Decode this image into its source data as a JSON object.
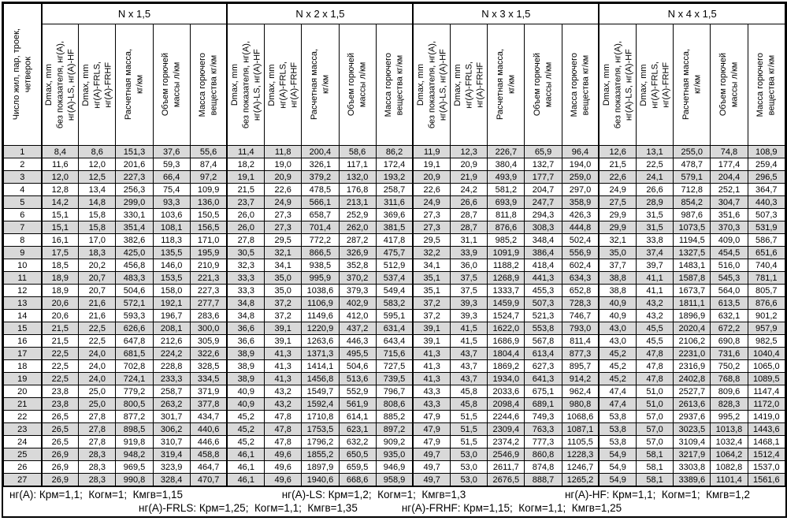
{
  "table": {
    "row_header_label": "Число жил, пар, троек,\nчетверок",
    "groups": [
      {
        "label": "N x 1,5"
      },
      {
        "label": "N x 2 x 1,5"
      },
      {
        "label": "N x 3 x 1,5"
      },
      {
        "label": "N x 4 x 1,5"
      }
    ],
    "subcolumns": [
      "Dmax, mm\nбез показателя, нг(А),\nнг(А)-LS, нг(А)-HF",
      "Dmax, mm\nнг(А)-FRLS,\nнг(А)-FRHF",
      "Расчетная масса,\nкг/км",
      "Объем горючей\nмассы л/км",
      "Масса горючего\nвещества кг/км"
    ],
    "rows": [
      {
        "n": "1",
        "cells": [
          "8,4",
          "8,6",
          "151,3",
          "37,6",
          "55,6",
          "11,4",
          "11,8",
          "200,4",
          "58,6",
          "86,2",
          "11,9",
          "12,3",
          "226,7",
          "65,9",
          "96,4",
          "12,6",
          "13,1",
          "255,0",
          "74,8",
          "108,9"
        ]
      },
      {
        "n": "2",
        "cells": [
          "11,6",
          "12,0",
          "201,6",
          "59,3",
          "87,4",
          "18,2",
          "19,0",
          "326,1",
          "117,1",
          "172,4",
          "19,1",
          "20,9",
          "380,4",
          "132,7",
          "194,0",
          "21,5",
          "22,5",
          "478,7",
          "177,4",
          "259,4"
        ]
      },
      {
        "n": "3",
        "cells": [
          "12,0",
          "12,5",
          "227,3",
          "66,4",
          "97,2",
          "19,1",
          "20,9",
          "379,2",
          "132,0",
          "193,2",
          "20,9",
          "21,9",
          "493,9",
          "177,7",
          "259,0",
          "22,6",
          "24,1",
          "579,1",
          "204,4",
          "296,5"
        ]
      },
      {
        "n": "4",
        "cells": [
          "12,8",
          "13,4",
          "256,3",
          "75,4",
          "109,9",
          "21,5",
          "22,6",
          "478,5",
          "176,8",
          "258,7",
          "22,6",
          "24,2",
          "581,2",
          "204,7",
          "297,0",
          "24,9",
          "26,6",
          "712,8",
          "252,1",
          "364,7"
        ]
      },
      {
        "n": "5",
        "cells": [
          "14,2",
          "14,8",
          "299,0",
          "93,3",
          "136,0",
          "23,7",
          "24,9",
          "566,1",
          "213,1",
          "311,6",
          "24,9",
          "26,6",
          "693,9",
          "247,7",
          "358,9",
          "27,5",
          "28,9",
          "854,2",
          "304,7",
          "440,3"
        ]
      },
      {
        "n": "6",
        "cells": [
          "15,1",
          "15,8",
          "330,1",
          "103,6",
          "150,5",
          "26,0",
          "27,3",
          "658,7",
          "252,9",
          "369,6",
          "27,3",
          "28,7",
          "811,8",
          "294,3",
          "426,3",
          "29,9",
          "31,5",
          "987,6",
          "351,6",
          "507,3"
        ]
      },
      {
        "n": "7",
        "cells": [
          "15,1",
          "15,8",
          "351,4",
          "108,1",
          "156,5",
          "26,0",
          "27,3",
          "701,4",
          "262,0",
          "381,5",
          "27,3",
          "28,7",
          "876,6",
          "308,3",
          "444,8",
          "29,9",
          "31,5",
          "1073,5",
          "370,3",
          "531,9"
        ]
      },
      {
        "n": "8",
        "cells": [
          "16,1",
          "17,0",
          "382,6",
          "118,3",
          "171,0",
          "27,8",
          "29,5",
          "772,2",
          "287,2",
          "417,8",
          "29,5",
          "31,1",
          "985,2",
          "348,4",
          "502,4",
          "32,1",
          "33,8",
          "1194,5",
          "409,0",
          "586,7"
        ]
      },
      {
        "n": "9",
        "cells": [
          "17,5",
          "18,3",
          "425,0",
          "135,5",
          "195,9",
          "30,5",
          "32,1",
          "866,5",
          "326,9",
          "475,7",
          "32,2",
          "33,9",
          "1091,9",
          "386,4",
          "556,9",
          "35,0",
          "37,4",
          "1327,5",
          "454,5",
          "651,6"
        ]
      },
      {
        "n": "10",
        "cells": [
          "18,5",
          "20,2",
          "456,8",
          "146,0",
          "210,9",
          "32,3",
          "34,1",
          "938,5",
          "352,8",
          "512,9",
          "34,1",
          "36,0",
          "1188,2",
          "418,4",
          "602,4",
          "37,7",
          "39,7",
          "1483,1",
          "516,0",
          "740,4"
        ]
      },
      {
        "n": "11",
        "cells": [
          "18,9",
          "20,7",
          "483,3",
          "153,5",
          "221,3",
          "33,3",
          "35,0",
          "995,9",
          "370,2",
          "537,4",
          "35,1",
          "37,5",
          "1268,9",
          "441,3",
          "634,3",
          "38,8",
          "41,1",
          "1587,8",
          "545,3",
          "781,1"
        ]
      },
      {
        "n": "12",
        "cells": [
          "18,9",
          "20,7",
          "504,6",
          "158,0",
          "227,3",
          "33,3",
          "35,0",
          "1038,6",
          "379,3",
          "549,4",
          "35,1",
          "37,5",
          "1333,7",
          "455,3",
          "652,8",
          "38,8",
          "41,1",
          "1673,7",
          "564,0",
          "805,7"
        ]
      },
      {
        "n": "13",
        "cells": [
          "20,6",
          "21,6",
          "572,1",
          "192,1",
          "277,7",
          "34,8",
          "37,2",
          "1106,9",
          "402,9",
          "583,2",
          "37,2",
          "39,3",
          "1459,9",
          "507,3",
          "728,3",
          "40,9",
          "43,2",
          "1811,1",
          "613,5",
          "876,6"
        ]
      },
      {
        "n": "14",
        "cells": [
          "20,6",
          "21,6",
          "593,3",
          "196,7",
          "283,6",
          "34,8",
          "37,2",
          "1149,6",
          "412,0",
          "595,1",
          "37,2",
          "39,3",
          "1524,7",
          "521,3",
          "746,7",
          "40,9",
          "43,2",
          "1896,9",
          "632,1",
          "901,2"
        ]
      },
      {
        "n": "15",
        "cells": [
          "21,5",
          "22,5",
          "626,6",
          "208,1",
          "300,0",
          "36,6",
          "39,1",
          "1220,9",
          "437,2",
          "631,4",
          "39,1",
          "41,5",
          "1622,0",
          "553,8",
          "793,0",
          "43,0",
          "45,5",
          "2020,4",
          "672,2",
          "957,9"
        ]
      },
      {
        "n": "16",
        "cells": [
          "21,5",
          "22,5",
          "647,8",
          "212,6",
          "305,9",
          "36,6",
          "39,1",
          "1263,6",
          "446,3",
          "643,4",
          "39,1",
          "41,5",
          "1686,9",
          "567,8",
          "811,4",
          "43,0",
          "45,5",
          "2106,2",
          "690,8",
          "982,5"
        ]
      },
      {
        "n": "17",
        "cells": [
          "22,5",
          "24,0",
          "681,5",
          "224,2",
          "322,6",
          "38,9",
          "41,3",
          "1371,3",
          "495,5",
          "715,6",
          "41,3",
          "43,7",
          "1804,4",
          "613,4",
          "877,3",
          "45,2",
          "47,8",
          "2231,0",
          "731,6",
          "1040,4"
        ]
      },
      {
        "n": "18",
        "cells": [
          "22,5",
          "24,0",
          "702,8",
          "228,8",
          "328,5",
          "38,9",
          "41,3",
          "1414,1",
          "504,6",
          "727,5",
          "41,3",
          "43,7",
          "1869,2",
          "627,3",
          "895,7",
          "45,2",
          "47,8",
          "2316,9",
          "750,2",
          "1065,0"
        ]
      },
      {
        "n": "19",
        "cells": [
          "22,5",
          "24,0",
          "724,1",
          "233,3",
          "334,5",
          "38,9",
          "41,3",
          "1456,8",
          "513,6",
          "739,5",
          "41,3",
          "43,7",
          "1934,0",
          "641,3",
          "914,2",
          "45,2",
          "47,8",
          "2402,8",
          "768,8",
          "1089,5"
        ]
      },
      {
        "n": "20",
        "cells": [
          "23,8",
          "25,0",
          "779,2",
          "258,7",
          "371,9",
          "40,9",
          "43,2",
          "1549,7",
          "552,9",
          "796,7",
          "43,3",
          "45,8",
          "2033,6",
          "675,1",
          "962,4",
          "47,4",
          "51,0",
          "2527,7",
          "809,6",
          "1147,4"
        ]
      },
      {
        "n": "21",
        "cells": [
          "23,8",
          "25,0",
          "800,5",
          "263,2",
          "377,8",
          "40,9",
          "43,2",
          "1592,4",
          "561,9",
          "808,6",
          "43,3",
          "45,8",
          "2098,4",
          "689,1",
          "980,8",
          "47,4",
          "51,0",
          "2613,6",
          "828,3",
          "1172,0"
        ]
      },
      {
        "n": "22",
        "cells": [
          "26,5",
          "27,8",
          "877,2",
          "301,7",
          "434,7",
          "45,2",
          "47,8",
          "1710,8",
          "614,1",
          "885,2",
          "47,9",
          "51,5",
          "2244,6",
          "749,3",
          "1068,6",
          "53,8",
          "57,0",
          "2937,6",
          "995,2",
          "1419,0"
        ]
      },
      {
        "n": "23",
        "cells": [
          "26,5",
          "27,8",
          "898,5",
          "306,2",
          "440,6",
          "45,2",
          "47,8",
          "1753,5",
          "623,1",
          "897,2",
          "47,9",
          "51,5",
          "2309,4",
          "763,3",
          "1087,1",
          "53,8",
          "57,0",
          "3023,5",
          "1013,8",
          "1443,6"
        ]
      },
      {
        "n": "24",
        "cells": [
          "26,5",
          "27,8",
          "919,8",
          "310,7",
          "446,6",
          "45,2",
          "47,8",
          "1796,2",
          "632,2",
          "909,2",
          "47,9",
          "51,5",
          "2374,2",
          "777,3",
          "1105,5",
          "53,8",
          "57,0",
          "3109,4",
          "1032,4",
          "1468,1"
        ]
      },
      {
        "n": "25",
        "cells": [
          "26,9",
          "28,3",
          "948,2",
          "319,4",
          "458,8",
          "46,1",
          "49,6",
          "1855,2",
          "650,5",
          "935,0",
          "49,7",
          "53,0",
          "2546,9",
          "860,8",
          "1228,3",
          "54,9",
          "58,1",
          "3217,9",
          "1064,2",
          "1512,4"
        ]
      },
      {
        "n": "26",
        "cells": [
          "26,9",
          "28,3",
          "969,5",
          "323,9",
          "464,7",
          "46,1",
          "49,6",
          "1897,9",
          "659,5",
          "946,9",
          "49,7",
          "53,0",
          "2611,7",
          "874,8",
          "1246,7",
          "54,9",
          "58,1",
          "3303,8",
          "1082,8",
          "1537,0"
        ]
      },
      {
        "n": "27",
        "cells": [
          "26,9",
          "28,3",
          "990,8",
          "328,4",
          "470,7",
          "46,1",
          "49,6",
          "1940,6",
          "668,6",
          "958,9",
          "49,7",
          "53,0",
          "2676,5",
          "888,7",
          "1265,2",
          "54,9",
          "58,1",
          "3389,6",
          "1101,4",
          "1561,6"
        ]
      }
    ]
  },
  "footer": {
    "line1": [
      "нг(А): Крм=1,1;  Когм=1;  Кмгв=1,15",
      "нг(А)-LS: Крм=1,2;  Когм=1;  Кмгв=1,3",
      "нг(А)-HF: Крм=1,1;  Когм=1;  Кмгв=1,2"
    ],
    "line2": [
      "нг(А)-FRLS: Крм=1,25;  Когм=1,1;  Кмгв=1,35",
      "нг(А)-FRHF: Крм=1,15;  Когм=1,1;  Кмгв=1,25"
    ]
  },
  "colors": {
    "shaded_row": "#d9d9d9",
    "border": "#000000"
  }
}
